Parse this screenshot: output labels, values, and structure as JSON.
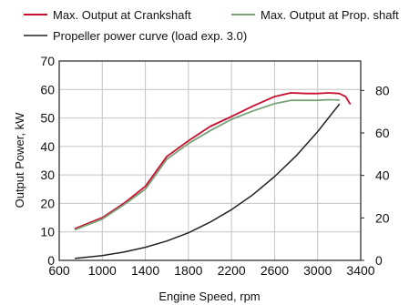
{
  "chart_data": {
    "type": "line",
    "xlabel": "Engine Speed, rpm",
    "ylabel": "Output Power, kW",
    "y2label": "",
    "xlim": [
      600,
      3400
    ],
    "ylim": [
      0,
      70
    ],
    "y2lim": [
      0,
      93.87
    ],
    "xticks": [
      "600",
      "1000",
      "1400",
      "1800",
      "2200",
      "2600",
      "3000",
      "3400"
    ],
    "yticks": [
      "0",
      "10",
      "20",
      "30",
      "40",
      "50",
      "60",
      "70"
    ],
    "y2ticks": [
      "0",
      "20",
      "40",
      "60",
      "80"
    ],
    "grid": true,
    "legend_position": "top",
    "series": [
      {
        "name": "Max. Output at Crankshaft",
        "color": "#c8102e",
        "x": [
          750,
          1000,
          1200,
          1400,
          1600,
          1800,
          2000,
          2200,
          2400,
          2600,
          2750,
          2900,
          3000,
          3100,
          3200,
          3260,
          3300
        ],
        "y": [
          11.2,
          15,
          20,
          26,
          36.5,
          42,
          47,
          50.5,
          54.2,
          57.5,
          58.8,
          58.6,
          58.6,
          58.8,
          58.6,
          57.5,
          55
        ]
      },
      {
        "name": "Max. Output at Prop. shaft",
        "color": "#7aa37a",
        "x": [
          750,
          1000,
          1200,
          1400,
          1600,
          1800,
          2000,
          2200,
          2400,
          2600,
          2750,
          2900,
          3000,
          3100,
          3200
        ],
        "y": [
          10.8,
          14.5,
          19.5,
          25,
          35.5,
          41,
          45.5,
          49.5,
          52.5,
          55,
          56.2,
          56.2,
          56.2,
          56.4,
          56.3
        ]
      },
      {
        "name": "Propeller power curve (load exp. 3.0)",
        "color": "#222222",
        "x": [
          750,
          1000,
          1200,
          1400,
          1600,
          1800,
          2000,
          2200,
          2400,
          2600,
          2800,
          3000,
          3200
        ],
        "y": [
          0.7,
          1.7,
          2.9,
          4.6,
          6.8,
          9.7,
          13.4,
          17.8,
          23.1,
          29.4,
          36.7,
          45.2,
          54.8
        ]
      }
    ]
  }
}
